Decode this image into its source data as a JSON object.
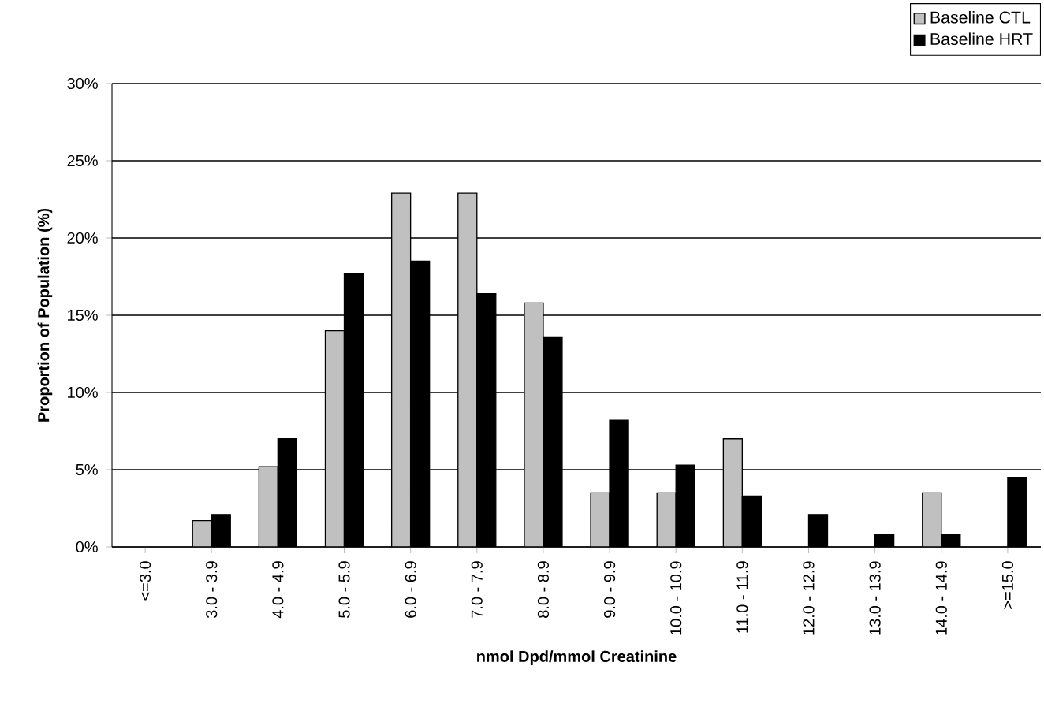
{
  "chart_data": {
    "type": "bar",
    "xlabel": "nmol Dpd/mmol Creatinine",
    "ylabel": "Proportion of Population (%)",
    "categories": [
      "<=3.0",
      "3.0 - 3.9",
      "4.0 - 4.9",
      "5.0 - 5.9",
      "6.0 - 6.9",
      "7.0 - 7.9",
      "8.0 - 8.9",
      "9.0 - 9.9",
      "10.0 - 10.9",
      "11.0 - 11.9",
      "12.0 - 12.9",
      "13.0 - 13.9",
      "14.0 - 14.9",
      ">=15.0"
    ],
    "series": [
      {
        "name": "Baseline CTL",
        "color": "#c0c0c0",
        "values": [
          0,
          1.7,
          5.2,
          14.0,
          22.9,
          22.9,
          15.8,
          3.5,
          3.5,
          7.0,
          0,
          0,
          3.5,
          0
        ]
      },
      {
        "name": "Baseline HRT",
        "color": "#000000",
        "values": [
          0,
          2.1,
          7.0,
          17.7,
          18.5,
          16.4,
          13.6,
          8.2,
          5.3,
          3.3,
          2.1,
          0.8,
          0.8,
          4.5
        ]
      }
    ],
    "ylim": [
      0,
      30
    ],
    "yticks": [
      {
        "value": 0,
        "label": "0%"
      },
      {
        "value": 5,
        "label": "5%"
      },
      {
        "value": 10,
        "label": "10%"
      },
      {
        "value": 15,
        "label": "15%"
      },
      {
        "value": 20,
        "label": "20%"
      },
      {
        "value": 25,
        "label": "25%"
      },
      {
        "value": 30,
        "label": "30%"
      }
    ],
    "grid": "y",
    "legend": "top right"
  }
}
